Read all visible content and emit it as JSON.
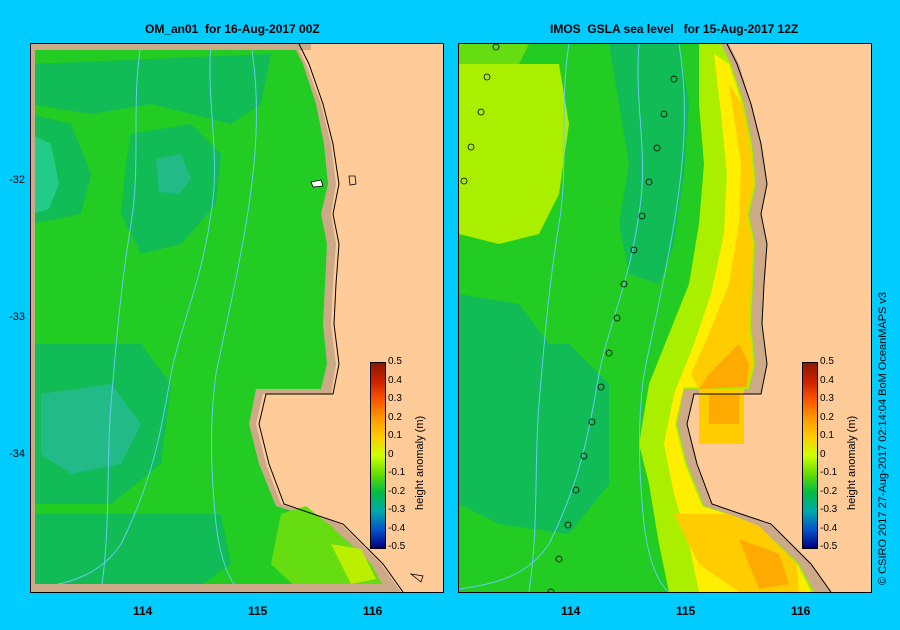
{
  "panels": [
    {
      "title": "OM_an01  for 16-Aug-2017 00Z"
    },
    {
      "title": "IMOS  GSLA sea level   for 15-Aug-2017 12Z"
    }
  ],
  "axes": {
    "lat_labels": [
      "-32",
      "-33",
      "-34"
    ],
    "lon_labels": [
      "114",
      "115",
      "116"
    ]
  },
  "colorbar": {
    "title": "height anomaly  (m)",
    "ticks": [
      "0.5",
      "0.4",
      "0.3",
      "0.2",
      "0.1",
      "0",
      "-0.1",
      "-0.2",
      "-0.3",
      "-0.4",
      "-0.5"
    ],
    "colors": [
      "#8b1a00",
      "#cc2200",
      "#ff5500",
      "#ff9900",
      "#ffcc00",
      "#ccff00",
      "#66dd00",
      "#00bb44",
      "#00aaaa",
      "#0055cc",
      "#000080"
    ]
  },
  "credit": "© CSIRO 2017   27-Aug-2017 02:14:04 BoM OceanMAPS v3",
  "colors": {
    "background": "#00ccff",
    "land": "#ffcc99",
    "shelf": "#ccaa88",
    "contour": "#66ccee"
  }
}
